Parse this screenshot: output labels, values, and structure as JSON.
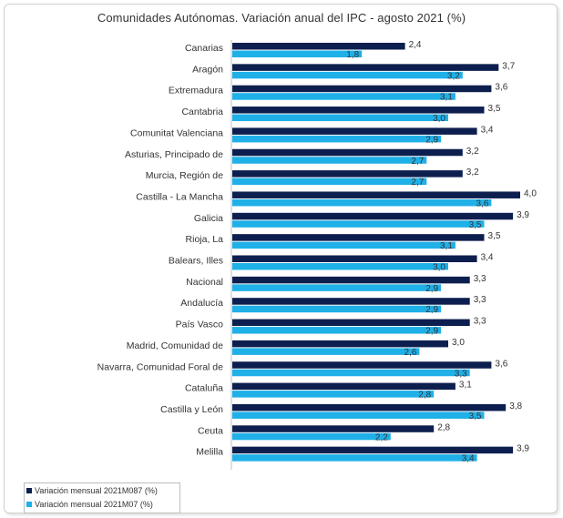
{
  "chart_data": {
    "type": "bar",
    "orientation": "horizontal",
    "title": "Comunidades Autónomas. Variación anual del IPC - agosto 2021 (%)",
    "categories": [
      "Canarias",
      "Aragón",
      "Extremadura",
      "Cantabria",
      "Comunitat Valenciana",
      "Asturias, Principado de",
      "Murcia, Región de",
      "Castilla - La Mancha",
      "Galicia",
      "Rioja, La",
      "Balears, Illes",
      "Nacional",
      "Andalucía",
      "País Vasco",
      "Madrid, Comunidad de",
      "Navarra, Comunidad Foral de",
      "Cataluña",
      "Castilla y León",
      "Ceuta",
      "Melilla"
    ],
    "series": [
      {
        "name": "Variación mensual 2021M087 (%)",
        "color": "#0d1f4f",
        "values": [
          2.4,
          3.7,
          3.6,
          3.5,
          3.4,
          3.2,
          3.2,
          4.0,
          3.9,
          3.5,
          3.4,
          3.3,
          3.3,
          3.3,
          3.0,
          3.6,
          3.1,
          3.8,
          2.8,
          3.9
        ],
        "labels": [
          "2,4",
          "3,7",
          "3,6",
          "3,5",
          "3,4",
          "3,2",
          "3,2",
          "4,0",
          "3,9",
          "3,5",
          "3,4",
          "3,3",
          "3,3",
          "3,3",
          "3,0",
          "3,6",
          "3,1",
          "3,8",
          "2,8",
          "3,9"
        ]
      },
      {
        "name": "Variación mensual 2021M07 (%)",
        "color": "#1fb0e8",
        "values": [
          1.8,
          3.2,
          3.1,
          3.0,
          2.9,
          2.7,
          2.7,
          3.6,
          3.5,
          3.1,
          3.0,
          2.9,
          2.9,
          2.9,
          2.6,
          3.3,
          2.8,
          3.5,
          2.2,
          3.4
        ],
        "labels": [
          "1,8",
          "3,2",
          "3,1",
          "3,0",
          "2,9",
          "2,7",
          "2,7",
          "3,6",
          "3,5",
          "3,1",
          "3,0",
          "2,9",
          "2,9",
          "2,9",
          "2,6",
          "3,3",
          "2,8",
          "3,5",
          "2,2",
          "3,4"
        ]
      }
    ],
    "xlim": [
      0,
      4.0
    ],
    "grid": false,
    "legend_position": "bottom-left"
  }
}
